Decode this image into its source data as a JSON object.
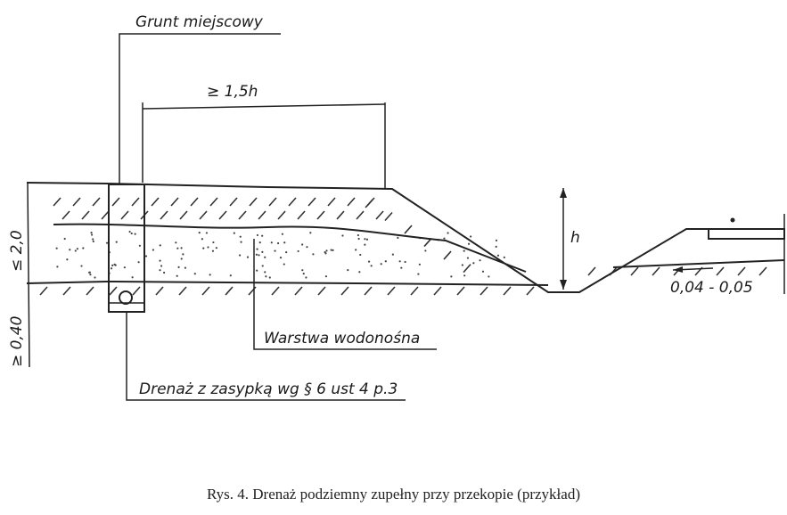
{
  "labels": {
    "local_soil": "Grunt miejscowy",
    "width_dim": "≥ 1,5h",
    "depth_dim": "h",
    "slope": "0,04 - 0,05",
    "max_depth": "≤ 2,0",
    "min_depth": "≥ 0,40",
    "aquifer": "Warstwa wodonośna",
    "drain": "Drenaż z zasypką wg § 6 ust 4 p.3"
  },
  "caption": "Rys. 4. Drenaż podziemny zupełny przy przekopie (przykład)"
}
